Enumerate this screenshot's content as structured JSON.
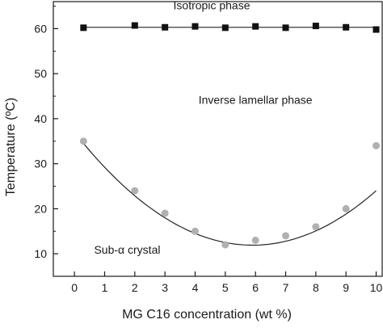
{
  "chart_data": {
    "type": "scatter",
    "xlabel": "MG C16 concentration (wt %)",
    "ylabel": "Temperature (ºC)",
    "xlim": [
      -0.7,
      10.2
    ],
    "ylim": [
      5,
      66
    ],
    "xticks": [
      0,
      1,
      2,
      3,
      4,
      5,
      6,
      7,
      8,
      9,
      10
    ],
    "yticks": [
      10,
      20,
      30,
      40,
      50,
      60
    ],
    "grid": false,
    "series": [
      {
        "marker": "square",
        "color": "#111111",
        "x": [
          0.3,
          2,
          3,
          4,
          5,
          6,
          7,
          8,
          9,
          10
        ],
        "y": [
          60.2,
          60.7,
          60.3,
          60.5,
          60.2,
          60.5,
          60.2,
          60.6,
          60.3,
          59.8
        ],
        "fit": "linear",
        "fit_coefficients": [
          60.3,
          0
        ]
      },
      {
        "marker": "circle",
        "color": "#b0b0b0",
        "x": [
          0.3,
          2,
          3,
          4,
          5,
          6,
          7,
          8,
          9,
          10
        ],
        "y": [
          35,
          24,
          19,
          15,
          12,
          13,
          14,
          16,
          20,
          34
        ],
        "fit": "quadratic",
        "fit_coefficients": [
          37.0,
          -8.5,
          0.72
        ]
      }
    ],
    "annotations": [
      {
        "text": "Isotropic phase",
        "x": 4.55,
        "y": 64.3
      },
      {
        "text": "Inverse lamellar phase",
        "x": 6.0,
        "y": 43.3
      },
      {
        "text": "Sub-α crystal",
        "x": 1.75,
        "y": 10.0
      }
    ]
  },
  "colors": {
    "axis": "#1a1a1a",
    "fit_line": "#222222"
  }
}
